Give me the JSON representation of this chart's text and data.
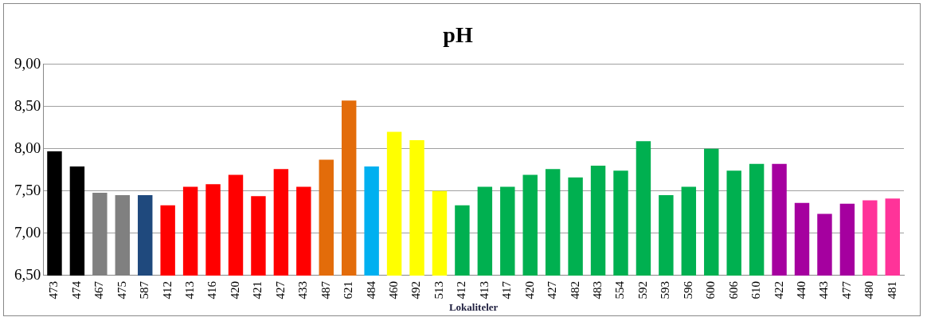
{
  "chart_data": {
    "type": "bar",
    "title": "pH",
    "xlabel": "Lokaliteler",
    "categories": [
      "473",
      "474",
      "467",
      "475",
      "587",
      "412",
      "413",
      "416",
      "420",
      "421",
      "427",
      "433",
      "487",
      "621",
      "484",
      "460",
      "492",
      "513",
      "412",
      "413",
      "417",
      "420",
      "427",
      "482",
      "483",
      "554",
      "592",
      "593",
      "596",
      "600",
      "606",
      "610",
      "422",
      "440",
      "443",
      "477",
      "480",
      "481"
    ],
    "values": [
      7.97,
      7.79,
      7.48,
      7.45,
      7.45,
      7.33,
      7.55,
      7.58,
      7.69,
      7.44,
      7.76,
      7.55,
      7.87,
      8.57,
      7.79,
      8.2,
      8.1,
      7.5,
      7.33,
      7.55,
      7.55,
      7.69,
      7.76,
      7.66,
      7.8,
      7.74,
      8.09,
      7.45,
      7.55,
      8.0,
      7.74,
      7.82,
      7.82,
      7.36,
      7.23,
      7.35,
      7.39,
      7.41
    ],
    "colors": [
      "#000000",
      "#000000",
      "#808080",
      "#808080",
      "#1f497d",
      "#ff0000",
      "#ff0000",
      "#ff0000",
      "#ff0000",
      "#ff0000",
      "#ff0000",
      "#ff0000",
      "#e36c0a",
      "#e36c0a",
      "#00b0f0",
      "#ffff00",
      "#ffff00",
      "#ffff00",
      "#00b050",
      "#00b050",
      "#00b050",
      "#00b050",
      "#00b050",
      "#00b050",
      "#00b050",
      "#00b050",
      "#00b050",
      "#00b050",
      "#00b050",
      "#00b050",
      "#00b050",
      "#00b050",
      "#a5009f",
      "#a5009f",
      "#a5009f",
      "#a5009f",
      "#ff3399",
      "#ff3399"
    ],
    "ylim": [
      6.5,
      9.0
    ],
    "yticks": [
      {
        "value": 6.5,
        "label": "6,50"
      },
      {
        "value": 7.0,
        "label": "7,00"
      },
      {
        "value": 7.5,
        "label": "7,50"
      },
      {
        "value": 8.0,
        "label": "8,00"
      },
      {
        "value": 8.5,
        "label": "8,50"
      },
      {
        "value": 9.0,
        "label": "9,00"
      }
    ],
    "grid": "y"
  }
}
